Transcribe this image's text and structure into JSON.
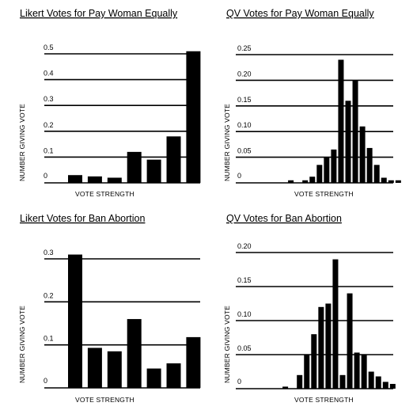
{
  "chart_data": [
    {
      "type": "bar",
      "title": "Likert Votes for Pay Woman Equally",
      "xlabel": "VOTE STRENGTH",
      "ylabel": "NUMBER GIVING VOTE",
      "ylim": [
        0,
        0.5
      ],
      "yticks": [
        "0",
        "0.1",
        "0.2",
        "0.3",
        "0.4",
        "0.5"
      ],
      "values": [
        0.03,
        0.025,
        0.02,
        0.12,
        0.09,
        0.18,
        0.51
      ],
      "grid": true
    },
    {
      "type": "bar",
      "title": "QV Votes for Pay Woman Equally",
      "xlabel": "VOTE STRENGTH",
      "ylabel": "NUMBER GIVING VOTE",
      "ylim": [
        0,
        0.25
      ],
      "yticks": [
        "0",
        "0.05",
        "0.10",
        "0.15",
        "0.20",
        "0.25"
      ],
      "values": [
        0,
        0,
        0.005,
        0,
        0.005,
        0.012,
        0.035,
        0.05,
        0.065,
        0.24,
        0.16,
        0.2,
        0.11,
        0.068,
        0.035,
        0.01,
        0.005,
        0.005
      ],
      "grid": true
    },
    {
      "type": "bar",
      "title": "Likert Votes for Ban Abortion",
      "xlabel": "VOTE STRENGTH",
      "ylabel": "NUMBER GIVING VOTE",
      "ylim": [
        0,
        0.3
      ],
      "yticks": [
        "0",
        "0.1",
        "0.2",
        "0.3"
      ],
      "values": [
        0.31,
        0.093,
        0.085,
        0.16,
        0.045,
        0.057,
        0.118
      ],
      "grid": true
    },
    {
      "type": "bar",
      "title": "QV Votes for Ban Abortion",
      "xlabel": "VOTE STRENGTH",
      "ylabel": "NUMBER GIVING VOTE",
      "ylim": [
        0,
        0.2
      ],
      "yticks": [
        "0",
        "0.05",
        "0.10",
        "0.15",
        "0.20"
      ],
      "values": [
        0,
        0,
        0.003,
        0,
        0.02,
        0.05,
        0.08,
        0.12,
        0.125,
        0.19,
        0.02,
        0.14,
        0.053,
        0.05,
        0.025,
        0.018,
        0.01,
        0.007
      ],
      "grid": true
    }
  ]
}
